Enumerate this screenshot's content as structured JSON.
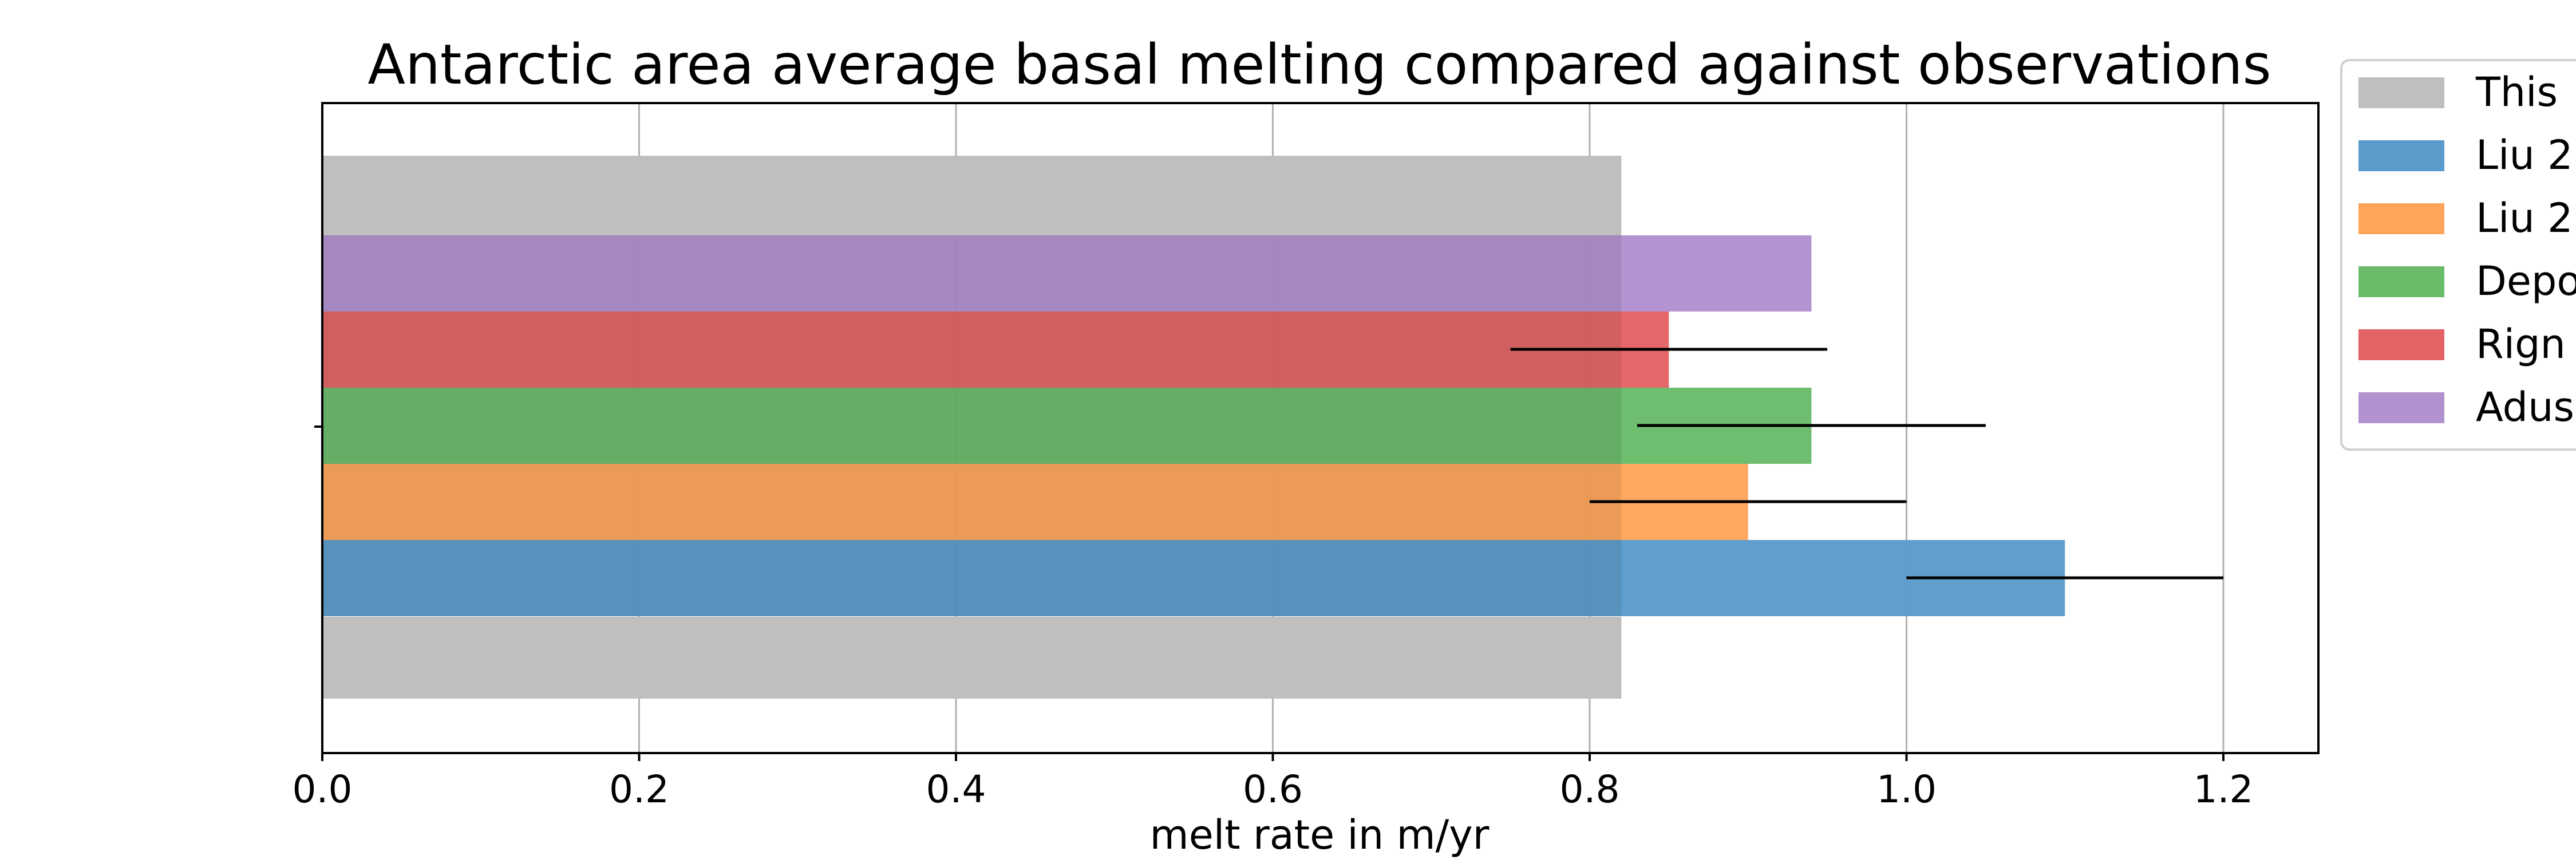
{
  "chart_data": {
    "type": "bar",
    "orientation": "horizontal",
    "title": "Antarctic area average basal melting compared against observations",
    "xlabel": "melt rate in m/yr",
    "ylabel": "",
    "xlim": [
      0,
      1.26
    ],
    "xticks": [
      "0.0",
      "0.2",
      "0.4",
      "0.6",
      "0.8",
      "1.0",
      "1.2"
    ],
    "grid": "x",
    "legend_placement": "outside-top-right",
    "series": [
      {
        "name": "This",
        "value": 0.82,
        "color": "#bfbfbf",
        "error": null
      },
      {
        "name": "Liu 2",
        "value": 1.1,
        "color": "#5b9bcb",
        "error": [
          1.0,
          1.2
        ]
      },
      {
        "name": "Liu 2",
        "value": 0.9,
        "color": "#ffa55a",
        "error": [
          0.8,
          1.0
        ]
      },
      {
        "name": "Depo",
        "value": 0.94,
        "color": "#6abb6a",
        "error": [
          0.83,
          1.05
        ]
      },
      {
        "name": "Rign",
        "value": 0.85,
        "color": "#e36364",
        "error": [
          0.75,
          0.95
        ]
      },
      {
        "name": "Adus",
        "value": 0.94,
        "color": "#b191ce",
        "error": null
      }
    ]
  }
}
